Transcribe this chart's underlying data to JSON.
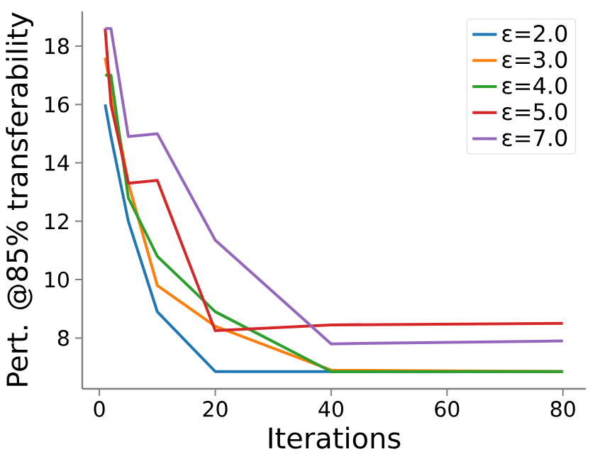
{
  "chart_data": {
    "type": "line",
    "xlabel": "Iterations",
    "ylabel": "Pert. @85% transferability",
    "x": [
      1,
      2,
      5,
      10,
      20,
      40,
      80
    ],
    "series": [
      {
        "name": "ε=2.0",
        "color": "#1f77b4",
        "values": [
          16.0,
          14.9,
          12.0,
          8.9,
          6.85,
          6.85,
          6.85
        ]
      },
      {
        "name": "ε=3.0",
        "color": "#ff7f0e",
        "values": [
          17.6,
          16.5,
          13.3,
          9.8,
          8.4,
          6.9,
          6.85
        ]
      },
      {
        "name": "ε=4.0",
        "color": "#2ca02c",
        "values": [
          17.0,
          17.0,
          12.8,
          10.8,
          8.9,
          6.85,
          6.85
        ]
      },
      {
        "name": "ε=5.0",
        "color": "#d62728",
        "values": [
          18.6,
          16.0,
          13.3,
          13.4,
          8.25,
          8.45,
          8.5
        ]
      },
      {
        "name": "ε=7.0",
        "color": "#9467bd",
        "values": [
          18.6,
          18.6,
          14.9,
          15.0,
          11.35,
          7.8,
          7.9
        ]
      }
    ],
    "xlim": [
      -2.95,
      83.95
    ],
    "ylim": [
      6.26,
      19.19
    ],
    "xticks": [
      0,
      20,
      40,
      60,
      80
    ],
    "yticks": [
      8,
      10,
      12,
      14,
      16,
      18
    ],
    "legend": "top right",
    "grid": false,
    "marker": "none",
    "line_style": "solid"
  }
}
